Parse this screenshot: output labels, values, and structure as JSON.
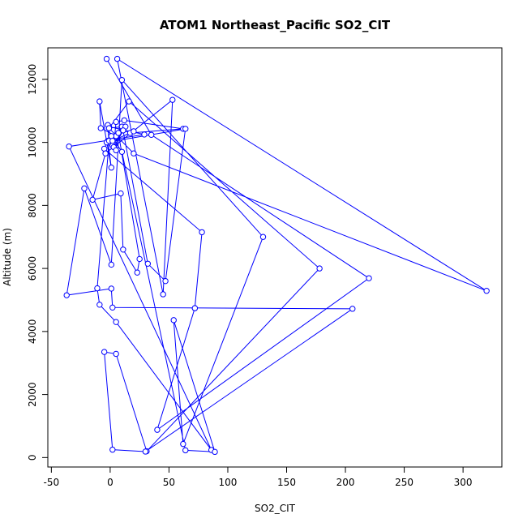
{
  "chart_data": {
    "type": "line",
    "title": "ATOM1 Northeast_Pacific SO2_CIT",
    "xlabel": "SO2_CIT",
    "ylabel": "Altitude (m)",
    "xlim": [
      -53,
      333
    ],
    "ylim": [
      -300,
      13000
    ],
    "x_ticks": [
      -50,
      0,
      50,
      100,
      150,
      200,
      250,
      300
    ],
    "y_ticks": [
      0,
      2000,
      4000,
      6000,
      8000,
      10000,
      12000
    ],
    "grid": false,
    "legend": "none",
    "marker": "open-circle",
    "color": "#0000ff",
    "series": [
      {
        "points": [
          [
            -3,
            12650
          ],
          [
            35,
            10240
          ],
          [
            220,
            5690
          ],
          [
            40,
            880
          ],
          [
            72,
            4740
          ],
          [
            72,
            4740
          ],
          [
            78,
            7150
          ],
          [
            -5,
            9800
          ],
          [
            -2,
            10050
          ],
          [
            1,
            9200
          ],
          [
            -9,
            11300
          ],
          [
            -8,
            10450
          ],
          [
            5,
            10200
          ],
          [
            10,
            10500
          ],
          [
            -1,
            10450
          ],
          [
            -1,
            10500
          ],
          [
            29,
            10250
          ],
          [
            -35,
            9870
          ],
          [
            86,
            240
          ],
          [
            5,
            4300
          ],
          [
            -9,
            4850
          ],
          [
            -11,
            5370
          ],
          [
            -1,
            10000
          ],
          [
            -2,
            10550
          ],
          [
            2,
            9900
          ],
          [
            13,
            10500
          ],
          [
            3,
            9850
          ],
          [
            5,
            10650
          ],
          [
            12,
            10700
          ],
          [
            62,
            10430
          ],
          [
            17,
            10300
          ],
          [
            11,
            10380
          ],
          [
            32,
            6150
          ],
          [
            47,
            5600
          ],
          [
            64,
            10430
          ],
          [
            -3,
            10000
          ],
          [
            -1,
            10050
          ],
          [
            5,
            9750
          ],
          [
            7,
            10300
          ],
          [
            25,
            6300
          ],
          [
            23,
            5870
          ],
          [
            11,
            6600
          ],
          [
            9,
            8380
          ],
          [
            -15,
            8180
          ],
          [
            -4,
            9650
          ],
          [
            53,
            11350
          ],
          [
            45,
            5180
          ],
          [
            6,
            12650
          ],
          [
            320,
            5290
          ],
          [
            20,
            9650
          ],
          [
            -1,
            10450
          ],
          [
            16,
            11300
          ],
          [
            178,
            6000
          ],
          [
            31,
            200
          ],
          [
            5,
            3290
          ],
          [
            -5,
            3350
          ],
          [
            2,
            250
          ],
          [
            30,
            190
          ],
          [
            206,
            4720
          ],
          [
            2,
            4760
          ],
          [
            1,
            5360
          ],
          [
            -37,
            5150
          ],
          [
            -22,
            8540
          ],
          [
            1,
            6120
          ],
          [
            10,
            11980
          ],
          [
            130,
            7000
          ],
          [
            62,
            430
          ],
          [
            54,
            4360
          ],
          [
            89,
            180
          ],
          [
            64,
            230
          ],
          [
            10,
            9700
          ],
          [
            1,
            10200
          ],
          [
            2,
            10050
          ],
          [
            20,
            10350
          ]
        ]
      }
    ]
  }
}
